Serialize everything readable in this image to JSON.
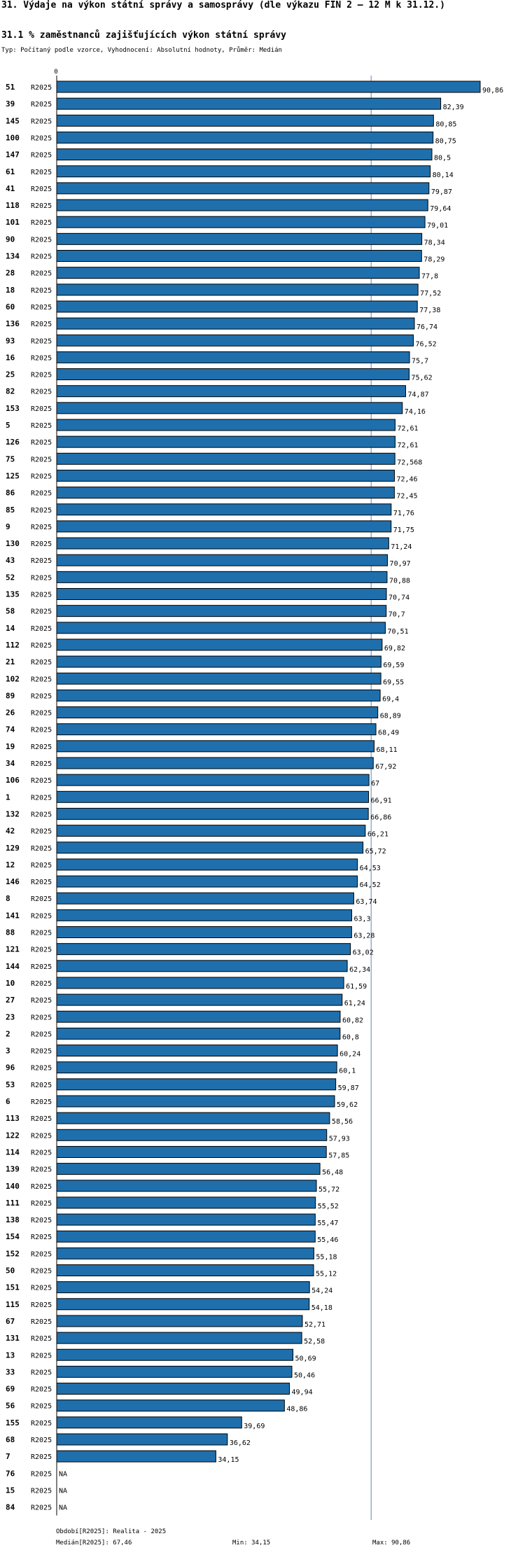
{
  "header": {
    "title": "31. Výdaje na výkon státní správy a samosprávy (dle výkazu FIN 2 – 12 M k 31.12.)",
    "subtitle": "31.1 % zaměstnanců zajišťujících výkon státní správy",
    "meta": "Typ: Počítaný podle vzorce, Vyhodnocení: Absolutní hodnoty, Průměr: Medián"
  },
  "chart_data": {
    "type": "bar",
    "orientation": "horizontal",
    "axis_zero_label": "0",
    "na_label": "NA",
    "median": 67.46,
    "xlim": [
      0,
      90.86
    ],
    "rows": [
      {
        "id": "51",
        "period": "R2025",
        "value": 90.86,
        "label": "90,86"
      },
      {
        "id": "39",
        "period": "R2025",
        "value": 82.39,
        "label": "82,39"
      },
      {
        "id": "145",
        "period": "R2025",
        "value": 80.85,
        "label": "80,85"
      },
      {
        "id": "100",
        "period": "R2025",
        "value": 80.75,
        "label": "80,75"
      },
      {
        "id": "147",
        "period": "R2025",
        "value": 80.5,
        "label": "80,5"
      },
      {
        "id": "61",
        "period": "R2025",
        "value": 80.14,
        "label": "80,14"
      },
      {
        "id": "41",
        "period": "R2025",
        "value": 79.87,
        "label": "79,87"
      },
      {
        "id": "118",
        "period": "R2025",
        "value": 79.64,
        "label": "79,64"
      },
      {
        "id": "101",
        "period": "R2025",
        "value": 79.01,
        "label": "79,01"
      },
      {
        "id": "90",
        "period": "R2025",
        "value": 78.34,
        "label": "78,34"
      },
      {
        "id": "134",
        "period": "R2025",
        "value": 78.29,
        "label": "78,29"
      },
      {
        "id": "28",
        "period": "R2025",
        "value": 77.8,
        "label": "77,8"
      },
      {
        "id": "18",
        "period": "R2025",
        "value": 77.52,
        "label": "77,52"
      },
      {
        "id": "60",
        "period": "R2025",
        "value": 77.38,
        "label": "77,38"
      },
      {
        "id": "136",
        "period": "R2025",
        "value": 76.74,
        "label": "76,74"
      },
      {
        "id": "93",
        "period": "R2025",
        "value": 76.52,
        "label": "76,52"
      },
      {
        "id": "16",
        "period": "R2025",
        "value": 75.7,
        "label": "75,7"
      },
      {
        "id": "25",
        "period": "R2025",
        "value": 75.62,
        "label": "75,62"
      },
      {
        "id": "82",
        "period": "R2025",
        "value": 74.87,
        "label": "74,87"
      },
      {
        "id": "153",
        "period": "R2025",
        "value": 74.16,
        "label": "74,16"
      },
      {
        "id": "5",
        "period": "R2025",
        "value": 72.61,
        "label": "72,61"
      },
      {
        "id": "126",
        "period": "R2025",
        "value": 72.61,
        "label": "72,61"
      },
      {
        "id": "75",
        "period": "R2025",
        "value": 72.568,
        "label": "72,568"
      },
      {
        "id": "125",
        "period": "R2025",
        "value": 72.46,
        "label": "72,46"
      },
      {
        "id": "86",
        "period": "R2025",
        "value": 72.45,
        "label": "72,45"
      },
      {
        "id": "85",
        "period": "R2025",
        "value": 71.76,
        "label": "71,76"
      },
      {
        "id": "9",
        "period": "R2025",
        "value": 71.75,
        "label": "71,75"
      },
      {
        "id": "130",
        "period": "R2025",
        "value": 71.24,
        "label": "71,24"
      },
      {
        "id": "43",
        "period": "R2025",
        "value": 70.97,
        "label": "70,97"
      },
      {
        "id": "52",
        "period": "R2025",
        "value": 70.88,
        "label": "70,88"
      },
      {
        "id": "135",
        "period": "R2025",
        "value": 70.74,
        "label": "70,74"
      },
      {
        "id": "58",
        "period": "R2025",
        "value": 70.7,
        "label": "70,7"
      },
      {
        "id": "14",
        "period": "R2025",
        "value": 70.51,
        "label": "70,51"
      },
      {
        "id": "112",
        "period": "R2025",
        "value": 69.82,
        "label": "69,82"
      },
      {
        "id": "21",
        "period": "R2025",
        "value": 69.59,
        "label": "69,59"
      },
      {
        "id": "102",
        "period": "R2025",
        "value": 69.55,
        "label": "69,55"
      },
      {
        "id": "89",
        "period": "R2025",
        "value": 69.4,
        "label": "69,4"
      },
      {
        "id": "26",
        "period": "R2025",
        "value": 68.89,
        "label": "68,89"
      },
      {
        "id": "74",
        "period": "R2025",
        "value": 68.49,
        "label": "68,49"
      },
      {
        "id": "19",
        "period": "R2025",
        "value": 68.11,
        "label": "68,11"
      },
      {
        "id": "34",
        "period": "R2025",
        "value": 67.92,
        "label": "67,92"
      },
      {
        "id": "106",
        "period": "R2025",
        "value": 67,
        "label": "67"
      },
      {
        "id": "1",
        "period": "R2025",
        "value": 66.91,
        "label": "66,91"
      },
      {
        "id": "132",
        "period": "R2025",
        "value": 66.86,
        "label": "66,86"
      },
      {
        "id": "42",
        "period": "R2025",
        "value": 66.21,
        "label": "66,21"
      },
      {
        "id": "129",
        "period": "R2025",
        "value": 65.72,
        "label": "65,72"
      },
      {
        "id": "12",
        "period": "R2025",
        "value": 64.53,
        "label": "64,53"
      },
      {
        "id": "146",
        "period": "R2025",
        "value": 64.52,
        "label": "64,52"
      },
      {
        "id": "8",
        "period": "R2025",
        "value": 63.74,
        "label": "63,74"
      },
      {
        "id": "141",
        "period": "R2025",
        "value": 63.3,
        "label": "63,3"
      },
      {
        "id": "88",
        "period": "R2025",
        "value": 63.28,
        "label": "63,28"
      },
      {
        "id": "121",
        "period": "R2025",
        "value": 63.02,
        "label": "63,02"
      },
      {
        "id": "144",
        "period": "R2025",
        "value": 62.34,
        "label": "62,34"
      },
      {
        "id": "10",
        "period": "R2025",
        "value": 61.59,
        "label": "61,59"
      },
      {
        "id": "27",
        "period": "R2025",
        "value": 61.24,
        "label": "61,24"
      },
      {
        "id": "23",
        "period": "R2025",
        "value": 60.82,
        "label": "60,82"
      },
      {
        "id": "2",
        "period": "R2025",
        "value": 60.8,
        "label": "60,8"
      },
      {
        "id": "3",
        "period": "R2025",
        "value": 60.24,
        "label": "60,24"
      },
      {
        "id": "96",
        "period": "R2025",
        "value": 60.1,
        "label": "60,1"
      },
      {
        "id": "53",
        "period": "R2025",
        "value": 59.87,
        "label": "59,87"
      },
      {
        "id": "6",
        "period": "R2025",
        "value": 59.62,
        "label": "59,62"
      },
      {
        "id": "113",
        "period": "R2025",
        "value": 58.56,
        "label": "58,56"
      },
      {
        "id": "122",
        "period": "R2025",
        "value": 57.93,
        "label": "57,93"
      },
      {
        "id": "114",
        "period": "R2025",
        "value": 57.85,
        "label": "57,85"
      },
      {
        "id": "139",
        "period": "R2025",
        "value": 56.48,
        "label": "56,48"
      },
      {
        "id": "140",
        "period": "R2025",
        "value": 55.72,
        "label": "55,72"
      },
      {
        "id": "111",
        "period": "R2025",
        "value": 55.52,
        "label": "55,52"
      },
      {
        "id": "138",
        "period": "R2025",
        "value": 55.47,
        "label": "55,47"
      },
      {
        "id": "154",
        "period": "R2025",
        "value": 55.46,
        "label": "55,46"
      },
      {
        "id": "152",
        "period": "R2025",
        "value": 55.18,
        "label": "55,18"
      },
      {
        "id": "50",
        "period": "R2025",
        "value": 55.12,
        "label": "55,12"
      },
      {
        "id": "151",
        "period": "R2025",
        "value": 54.24,
        "label": "54,24"
      },
      {
        "id": "115",
        "period": "R2025",
        "value": 54.18,
        "label": "54,18"
      },
      {
        "id": "67",
        "period": "R2025",
        "value": 52.71,
        "label": "52,71"
      },
      {
        "id": "131",
        "period": "R2025",
        "value": 52.58,
        "label": "52,58"
      },
      {
        "id": "13",
        "period": "R2025",
        "value": 50.69,
        "label": "50,69"
      },
      {
        "id": "33",
        "period": "R2025",
        "value": 50.46,
        "label": "50,46"
      },
      {
        "id": "69",
        "period": "R2025",
        "value": 49.94,
        "label": "49,94"
      },
      {
        "id": "56",
        "period": "R2025",
        "value": 48.86,
        "label": "48,86"
      },
      {
        "id": "155",
        "period": "R2025",
        "value": 39.69,
        "label": "39,69"
      },
      {
        "id": "68",
        "period": "R2025",
        "value": 36.62,
        "label": "36,62"
      },
      {
        "id": "7",
        "period": "R2025",
        "value": 34.15,
        "label": "34,15"
      },
      {
        "id": "76",
        "period": "R2025",
        "value": null,
        "label": "NA"
      },
      {
        "id": "15",
        "period": "R2025",
        "value": null,
        "label": "NA"
      },
      {
        "id": "84",
        "period": "R2025",
        "value": null,
        "label": "NA"
      }
    ]
  },
  "footer": {
    "period": "Období[R2025]: Realita - 2025",
    "median": "Medián[R2025]: 67,46",
    "min": "Min: 34,15",
    "max": "Max: 90,86"
  },
  "colors": {
    "bar": "#1f6fad",
    "bar_border": "#000000",
    "median_line": "#5b87b8"
  }
}
